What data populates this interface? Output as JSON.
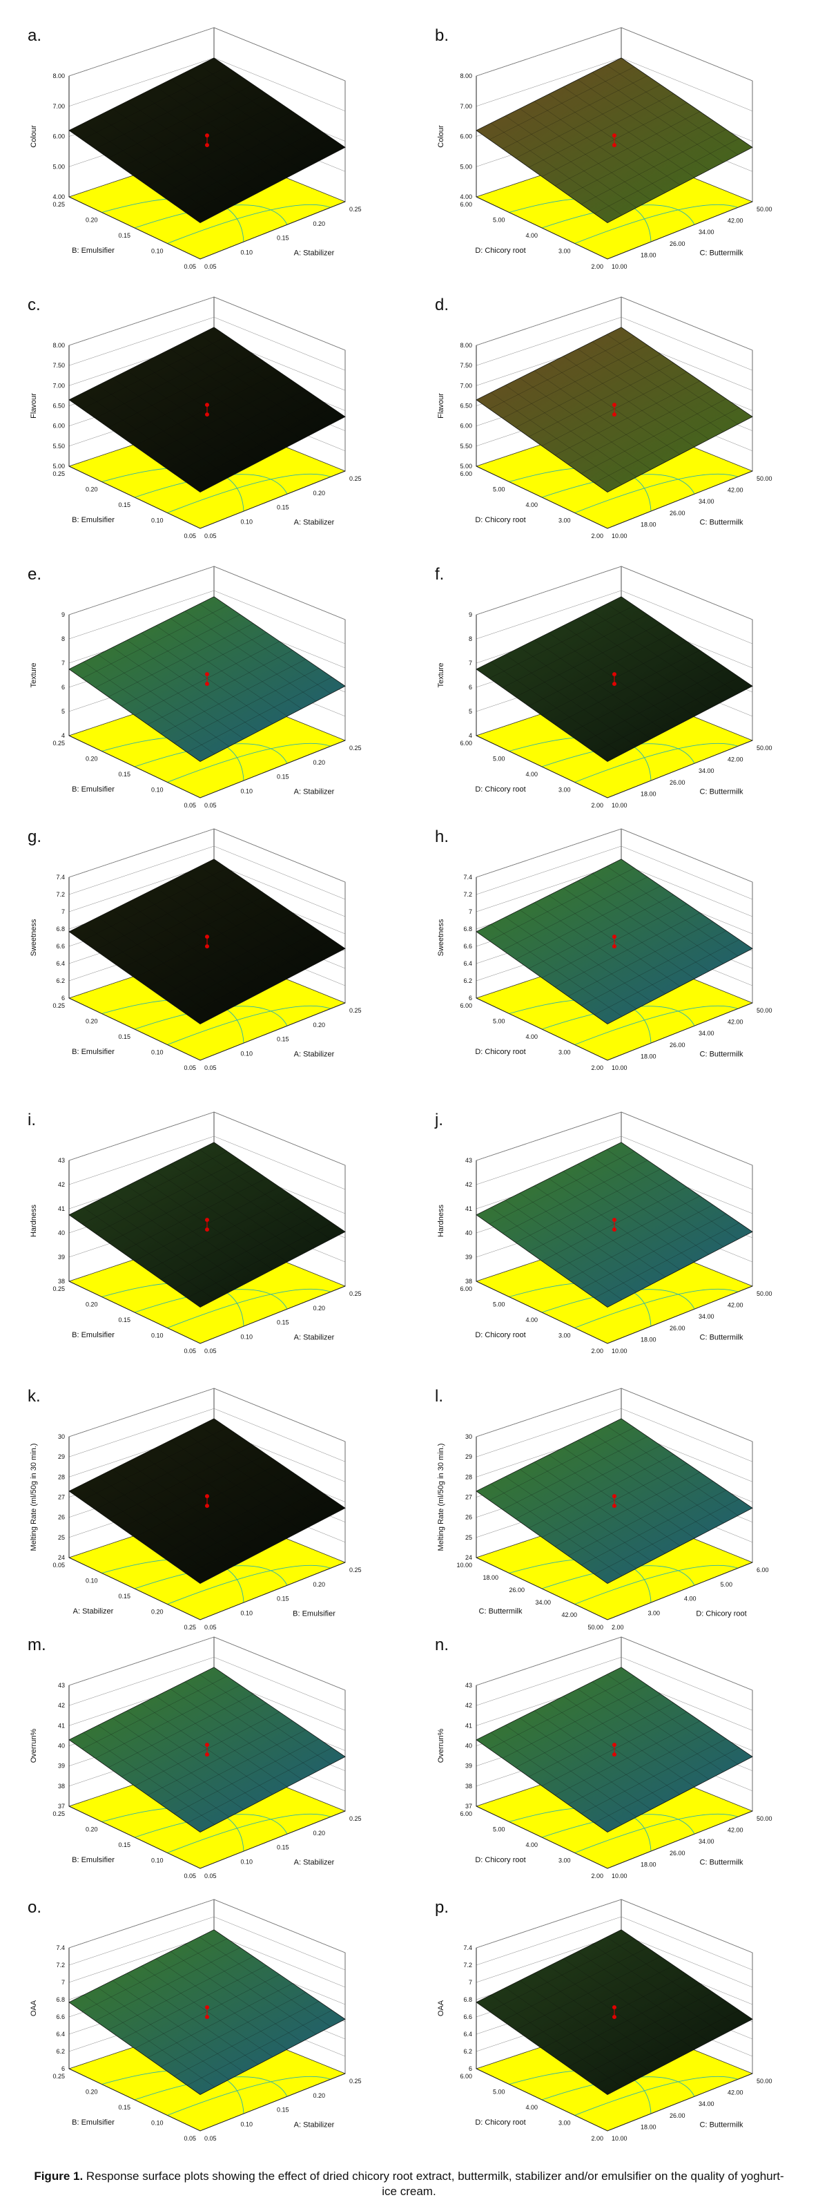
{
  "caption": {
    "label": "Figure 1.",
    "text": "Response surface plots showing the effect of dried chicory root extract, buttermilk, stabilizer and/or emulsifier on the quality of yoghurt-ice cream."
  },
  "colors": {
    "floor": "#ffff00",
    "contour": "#2ab3a8",
    "point": "#e00000",
    "grid": "#444444",
    "dark": "#101808",
    "green": "#3f8a22",
    "blue": "#1a5a8a",
    "olive": "#5a4a1a"
  },
  "panels": [
    {
      "label": "a.",
      "zlabel": "Colour",
      "zticks": [
        "4.00",
        "5.00",
        "6.00",
        "7.00",
        "8.00"
      ],
      "leftAxis": "B: Emulsifier",
      "leftTicks": [
        "0.25",
        "0.20",
        "0.15",
        "0.10",
        "0.05"
      ],
      "rightAxis": "A: Stabilizer",
      "rightTicks": [
        "0.05",
        "0.10",
        "0.15",
        "0.20",
        "0.25"
      ],
      "style": "dark"
    },
    {
      "label": "b.",
      "zlabel": "Colour",
      "zticks": [
        "4.00",
        "5.00",
        "6.00",
        "7.00",
        "8.00"
      ],
      "leftAxis": "D: Chicory root",
      "leftTicks": [
        "6.00",
        "5.00",
        "4.00",
        "3.00",
        "2.00"
      ],
      "rightAxis": "C: Buttermilk",
      "rightTicks": [
        "10.00",
        "18.00",
        "26.00",
        "34.00",
        "42.00",
        "50.00"
      ],
      "style": "brown"
    },
    {
      "label": "c.",
      "zlabel": "Flavour",
      "zticks": [
        "5.00",
        "5.50",
        "6.00",
        "6.50",
        "7.00",
        "7.50",
        "8.00"
      ],
      "leftAxis": "B: Emulsifier",
      "leftTicks": [
        "0.25",
        "0.20",
        "0.15",
        "0.10",
        "0.05"
      ],
      "rightAxis": "A: Stabilizer",
      "rightTicks": [
        "0.05",
        "0.10",
        "0.15",
        "0.20",
        "0.25"
      ],
      "style": "dark"
    },
    {
      "label": "d.",
      "zlabel": "Flavour",
      "zticks": [
        "5.00",
        "5.50",
        "6.00",
        "6.50",
        "7.00",
        "7.50",
        "8.00"
      ],
      "leftAxis": "D: Chicory root",
      "leftTicks": [
        "6.00",
        "5.00",
        "4.00",
        "3.00",
        "2.00"
      ],
      "rightAxis": "C: Buttermilk",
      "rightTicks": [
        "10.00",
        "18.00",
        "26.00",
        "34.00",
        "42.00",
        "50.00"
      ],
      "style": "brown"
    },
    {
      "label": "e.",
      "zlabel": "Texture",
      "zticks": [
        "4",
        "5",
        "6",
        "7",
        "8",
        "9"
      ],
      "leftAxis": "B: Emulsifier",
      "leftTicks": [
        "0.25",
        "0.20",
        "0.15",
        "0.10",
        "0.05"
      ],
      "rightAxis": "A: Stabilizer",
      "rightTicks": [
        "0.05",
        "0.10",
        "0.15",
        "0.20",
        "0.25"
      ],
      "style": "green"
    },
    {
      "label": "f.",
      "zlabel": "Texture",
      "zticks": [
        "4",
        "5",
        "6",
        "7",
        "8",
        "9"
      ],
      "leftAxis": "D: Chicory root",
      "leftTicks": [
        "6.00",
        "5.00",
        "4.00",
        "3.00",
        "2.00"
      ],
      "rightAxis": "C: Buttermilk",
      "rightTicks": [
        "10.00",
        "18.00",
        "26.00",
        "34.00",
        "42.00",
        "50.00"
      ],
      "style": "darkgreen"
    },
    {
      "label": "g.",
      "zlabel": "Sweetness",
      "zticks": [
        "6",
        "6.2",
        "6.4",
        "6.6",
        "6.8",
        "7",
        "7.2",
        "7.4"
      ],
      "leftAxis": "B: Emulsifier",
      "leftTicks": [
        "0.25",
        "0.20",
        "0.15",
        "0.10",
        "0.05"
      ],
      "rightAxis": "A: Stabilizer",
      "rightTicks": [
        "0.05",
        "0.10",
        "0.15",
        "0.20",
        "0.25"
      ],
      "style": "dark"
    },
    {
      "label": "h.",
      "zlabel": "Sweetness",
      "zticks": [
        "6",
        "6.2",
        "6.4",
        "6.6",
        "6.8",
        "7",
        "7.2",
        "7.4"
      ],
      "leftAxis": "D: Chicory root",
      "leftTicks": [
        "6.00",
        "5.00",
        "4.00",
        "3.00",
        "2.00"
      ],
      "rightAxis": "C: Buttermilk",
      "rightTicks": [
        "10.00",
        "18.00",
        "26.00",
        "34.00",
        "42.00",
        "50.00"
      ],
      "style": "green"
    },
    {
      "label": "i.",
      "zlabel": "Hardness",
      "zticks": [
        "38",
        "39",
        "40",
        "41",
        "42",
        "43"
      ],
      "leftAxis": "B: Emulsifier",
      "leftTicks": [
        "0.25",
        "0.20",
        "0.15",
        "0.10",
        "0.05"
      ],
      "rightAxis": "A: Stabilizer",
      "rightTicks": [
        "0.05",
        "0.10",
        "0.15",
        "0.20",
        "0.25"
      ],
      "style": "darkgreen"
    },
    {
      "label": "j.",
      "zlabel": "Hardness",
      "zticks": [
        "38",
        "39",
        "40",
        "41",
        "42",
        "43"
      ],
      "leftAxis": "D: Chicory root",
      "leftTicks": [
        "6.00",
        "5.00",
        "4.00",
        "3.00",
        "2.00"
      ],
      "rightAxis": "C: Buttermilk",
      "rightTicks": [
        "10.00",
        "18.00",
        "26.00",
        "34.00",
        "42.00",
        "50.00"
      ],
      "style": "green"
    },
    {
      "label": "k.",
      "zlabel": "Melting Rate (ml/50g in 30 min.)",
      "zticks": [
        "24",
        "25",
        "26",
        "27",
        "28",
        "29",
        "30"
      ],
      "leftAxis": "A: Stabilizer",
      "leftTicks": [
        "0.05",
        "0.10",
        "0.15",
        "0.20",
        "0.25"
      ],
      "rightAxis": "B: Emulsifier",
      "rightTicks": [
        "0.05",
        "0.10",
        "0.15",
        "0.20",
        "0.25"
      ],
      "style": "dark"
    },
    {
      "label": "l.",
      "zlabel": "Melting Rate (ml/50g in 30 min.)",
      "zticks": [
        "24",
        "25",
        "26",
        "27",
        "28",
        "29",
        "30"
      ],
      "leftAxis": "C: Buttermilk",
      "leftTicks": [
        "10.00",
        "18.00",
        "26.00",
        "34.00",
        "42.00",
        "50.00"
      ],
      "rightAxis": "D: Chicory root",
      "rightTicks": [
        "2.00",
        "3.00",
        "4.00",
        "5.00",
        "6.00"
      ],
      "style": "green"
    },
    {
      "label": "m.",
      "zlabel": "Overrun%",
      "zticks": [
        "37",
        "38",
        "39",
        "40",
        "41",
        "42",
        "43"
      ],
      "leftAxis": "B: Emulsifier",
      "leftTicks": [
        "0.25",
        "0.20",
        "0.15",
        "0.10",
        "0.05"
      ],
      "rightAxis": "A: Stabilizer",
      "rightTicks": [
        "0.05",
        "0.10",
        "0.15",
        "0.20",
        "0.25"
      ],
      "style": "green"
    },
    {
      "label": "n.",
      "zlabel": "Overrun%",
      "zticks": [
        "37",
        "38",
        "39",
        "40",
        "41",
        "42",
        "43"
      ],
      "leftAxis": "D: Chicory root",
      "leftTicks": [
        "6.00",
        "5.00",
        "4.00",
        "3.00",
        "2.00"
      ],
      "rightAxis": "C: Buttermilk",
      "rightTicks": [
        "10.00",
        "18.00",
        "26.00",
        "34.00",
        "42.00",
        "50.00"
      ],
      "style": "green"
    },
    {
      "label": "o.",
      "zlabel": "OAA",
      "zticks": [
        "6",
        "6.2",
        "6.4",
        "6.6",
        "6.8",
        "7",
        "7.2",
        "7.4"
      ],
      "leftAxis": "B: Emulsifier",
      "leftTicks": [
        "0.25",
        "0.20",
        "0.15",
        "0.10",
        "0.05"
      ],
      "rightAxis": "A: Stabilizer",
      "rightTicks": [
        "0.05",
        "0.10",
        "0.15",
        "0.20",
        "0.25"
      ],
      "style": "green"
    },
    {
      "label": "p.",
      "zlabel": "OAA",
      "zticks": [
        "6",
        "6.2",
        "6.4",
        "6.6",
        "6.8",
        "7",
        "7.2",
        "7.4"
      ],
      "leftAxis": "D: Chicory root",
      "leftTicks": [
        "6.00",
        "5.00",
        "4.00",
        "3.00",
        "2.00"
      ],
      "rightAxis": "C: Buttermilk",
      "rightTicks": [
        "10.00",
        "18.00",
        "26.00",
        "34.00",
        "42.00",
        "50.00"
      ],
      "style": "darkgreen"
    }
  ]
}
